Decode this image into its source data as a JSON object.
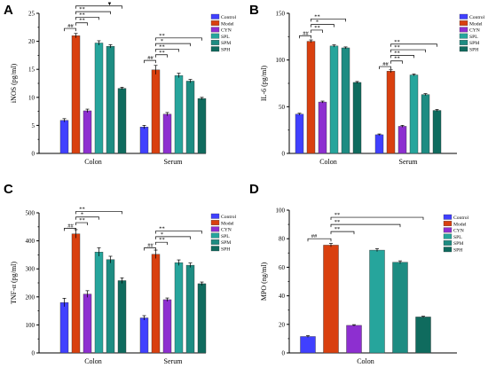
{
  "colors": {
    "Control": "#4040ff",
    "Model": "#d9400f",
    "CYN": "#8d2fd0",
    "SPL": "#26a59c",
    "SPM": "#1d8c82",
    "SPH": "#0f6b5e"
  },
  "chart_data": [
    {
      "panel": "A",
      "type": "bar",
      "title": "",
      "xlabel": "",
      "ylabel": "iNOS (pg/ml)",
      "ylim": [
        0,
        25
      ],
      "yticks": [
        0,
        5,
        10,
        15,
        20,
        25
      ],
      "categories": [
        "Colon",
        "Serum"
      ],
      "legend_position": "top-right",
      "series": [
        {
          "name": "Control",
          "values": [
            5.9,
            4.7
          ],
          "errors": [
            0.3,
            0.3
          ]
        },
        {
          "name": "Model",
          "values": [
            21.0,
            14.9
          ],
          "errors": [
            0.4,
            0.8
          ]
        },
        {
          "name": "CYN",
          "values": [
            7.6,
            7.0
          ],
          "errors": [
            0.3,
            0.3
          ]
        },
        {
          "name": "SPL",
          "values": [
            19.7,
            13.9
          ],
          "errors": [
            0.4,
            0.4
          ]
        },
        {
          "name": "SPM",
          "values": [
            19.1,
            12.9
          ],
          "errors": [
            0.3,
            0.3
          ]
        },
        {
          "name": "SPH",
          "values": [
            11.6,
            9.8
          ],
          "errors": [
            0.2,
            0.2
          ]
        }
      ],
      "significance": [
        {
          "label": "##",
          "group": 0,
          "from": 0,
          "to": 1,
          "level": 22.3
        },
        {
          "label": "**",
          "group": 0,
          "from": 1,
          "to": 2,
          "level": 23.3
        },
        {
          "label": "**",
          "group": 0,
          "from": 1,
          "to": 3,
          "level": 24.3
        },
        {
          "label": "**",
          "group": 0,
          "from": 1,
          "to": 4,
          "level": 25.3
        },
        {
          "label": "▼",
          "group": 0,
          "from": 1,
          "to": 5,
          "level": 26.3
        },
        {
          "label": "##",
          "group": 1,
          "from": 0,
          "to": 1,
          "level": 16.6
        },
        {
          "label": "**",
          "group": 1,
          "from": 1,
          "to": 2,
          "level": 17.6
        },
        {
          "label": "**",
          "group": 1,
          "from": 1,
          "to": 3,
          "level": 18.6
        },
        {
          "label": "*",
          "group": 1,
          "from": 1,
          "to": 4,
          "level": 19.6
        },
        {
          "label": "**",
          "group": 1,
          "from": 1,
          "to": 5,
          "level": 20.6
        }
      ]
    },
    {
      "panel": "B",
      "type": "bar",
      "title": "",
      "xlabel": "",
      "ylabel": "IL-6 (pg/ml)",
      "ylim": [
        0,
        150
      ],
      "yticks": [
        0,
        50,
        100,
        150
      ],
      "categories": [
        "Colon",
        "Serum"
      ],
      "legend_position": "top-right",
      "series": [
        {
          "name": "Control",
          "values": [
            42,
            20
          ],
          "errors": [
            1.0,
            0.8
          ]
        },
        {
          "name": "Model",
          "values": [
            120,
            88
          ],
          "errors": [
            1.5,
            1.5
          ]
        },
        {
          "name": "CYN",
          "values": [
            55,
            29
          ],
          "errors": [
            1.0,
            1.0
          ]
        },
        {
          "name": "SPL",
          "values": [
            115,
            84
          ],
          "errors": [
            1.2,
            1.0
          ]
        },
        {
          "name": "SPM",
          "values": [
            113,
            63
          ],
          "errors": [
            1.0,
            1.0
          ]
        },
        {
          "name": "SPH",
          "values": [
            76,
            46
          ],
          "errors": [
            1.0,
            1.0
          ]
        }
      ],
      "significance": [
        {
          "label": "##",
          "group": 0,
          "from": 0,
          "to": 1,
          "level": 126
        },
        {
          "label": "**",
          "group": 0,
          "from": 1,
          "to": 2,
          "level": 132
        },
        {
          "label": "*",
          "group": 0,
          "from": 1,
          "to": 3,
          "level": 138
        },
        {
          "label": "**",
          "group": 0,
          "from": 1,
          "to": 4,
          "level": 144
        },
        {
          "label": "##",
          "group": 1,
          "from": 0,
          "to": 1,
          "level": 93
        },
        {
          "label": "**",
          "group": 1,
          "from": 1,
          "to": 2,
          "level": 99
        },
        {
          "label": "**",
          "group": 1,
          "from": 1,
          "to": 3,
          "level": 105
        },
        {
          "label": "**",
          "group": 1,
          "from": 1,
          "to": 4,
          "level": 111
        },
        {
          "label": "**",
          "group": 1,
          "from": 1,
          "to": 5,
          "level": 117
        }
      ]
    },
    {
      "panel": "C",
      "type": "bar",
      "title": "",
      "xlabel": "",
      "ylabel": "TNF-α (pg/ml)",
      "ylim": [
        0,
        500
      ],
      "yticks": [
        0,
        100,
        200,
        300,
        400,
        500
      ],
      "categories": [
        "Colon",
        "Serum"
      ],
      "legend_position": "top-right",
      "series": [
        {
          "name": "Control",
          "values": [
            180,
            125
          ],
          "errors": [
            15,
            8
          ]
        },
        {
          "name": "Model",
          "values": [
            425,
            352
          ],
          "errors": [
            15,
            15
          ]
        },
        {
          "name": "CYN",
          "values": [
            210,
            190
          ],
          "errors": [
            12,
            6
          ]
        },
        {
          "name": "SPL",
          "values": [
            360,
            322
          ],
          "errors": [
            15,
            10
          ]
        },
        {
          "name": "SPM",
          "values": [
            333,
            313
          ],
          "errors": [
            12,
            8
          ]
        },
        {
          "name": "SPH",
          "values": [
            258,
            247
          ],
          "errors": [
            10,
            6
          ]
        }
      ],
      "significance": [
        {
          "label": "##",
          "group": 0,
          "from": 0,
          "to": 1,
          "level": 445
        },
        {
          "label": "**",
          "group": 0,
          "from": 1,
          "to": 2,
          "level": 465
        },
        {
          "label": "*",
          "group": 0,
          "from": 1,
          "to": 3,
          "level": 485
        },
        {
          "label": "**",
          "group": 0,
          "from": 1,
          "to": 5,
          "level": 505
        },
        {
          "label": "##",
          "group": 1,
          "from": 0,
          "to": 1,
          "level": 375
        },
        {
          "label": "**",
          "group": 1,
          "from": 1,
          "to": 2,
          "level": 395
        },
        {
          "label": "*",
          "group": 1,
          "from": 1,
          "to": 4,
          "level": 415
        },
        {
          "label": "**",
          "group": 1,
          "from": 1,
          "to": 5,
          "level": 435
        }
      ]
    },
    {
      "panel": "D",
      "type": "bar",
      "title": "",
      "xlabel": "",
      "ylabel": "MPO (ng/ml)",
      "ylim": [
        0,
        100
      ],
      "yticks": [
        0,
        20,
        40,
        60,
        80,
        100
      ],
      "categories": [
        "Colon"
      ],
      "legend_position": "top-right",
      "series": [
        {
          "name": "Control",
          "values": [
            11.5
          ],
          "errors": [
            0.6
          ]
        },
        {
          "name": "Model",
          "values": [
            75.5
          ],
          "errors": [
            1.2
          ]
        },
        {
          "name": "CYN",
          "values": [
            19.3
          ],
          "errors": [
            0.5
          ]
        },
        {
          "name": "SPL",
          "values": [
            72.0
          ],
          "errors": [
            1.0
          ]
        },
        {
          "name": "SPM",
          "values": [
            63.5
          ],
          "errors": [
            1.0
          ]
        },
        {
          "name": "SPH",
          "values": [
            25.2
          ],
          "errors": [
            0.5
          ]
        }
      ],
      "significance": [
        {
          "label": "##",
          "group": 0,
          "from": 0,
          "to": 1,
          "level": 80
        },
        {
          "label": "**",
          "group": 0,
          "from": 1,
          "to": 2,
          "level": 85
        },
        {
          "label": "**",
          "group": 0,
          "from": 1,
          "to": 4,
          "level": 90
        },
        {
          "label": "**",
          "group": 0,
          "from": 1,
          "to": 5,
          "level": 95
        }
      ]
    }
  ]
}
